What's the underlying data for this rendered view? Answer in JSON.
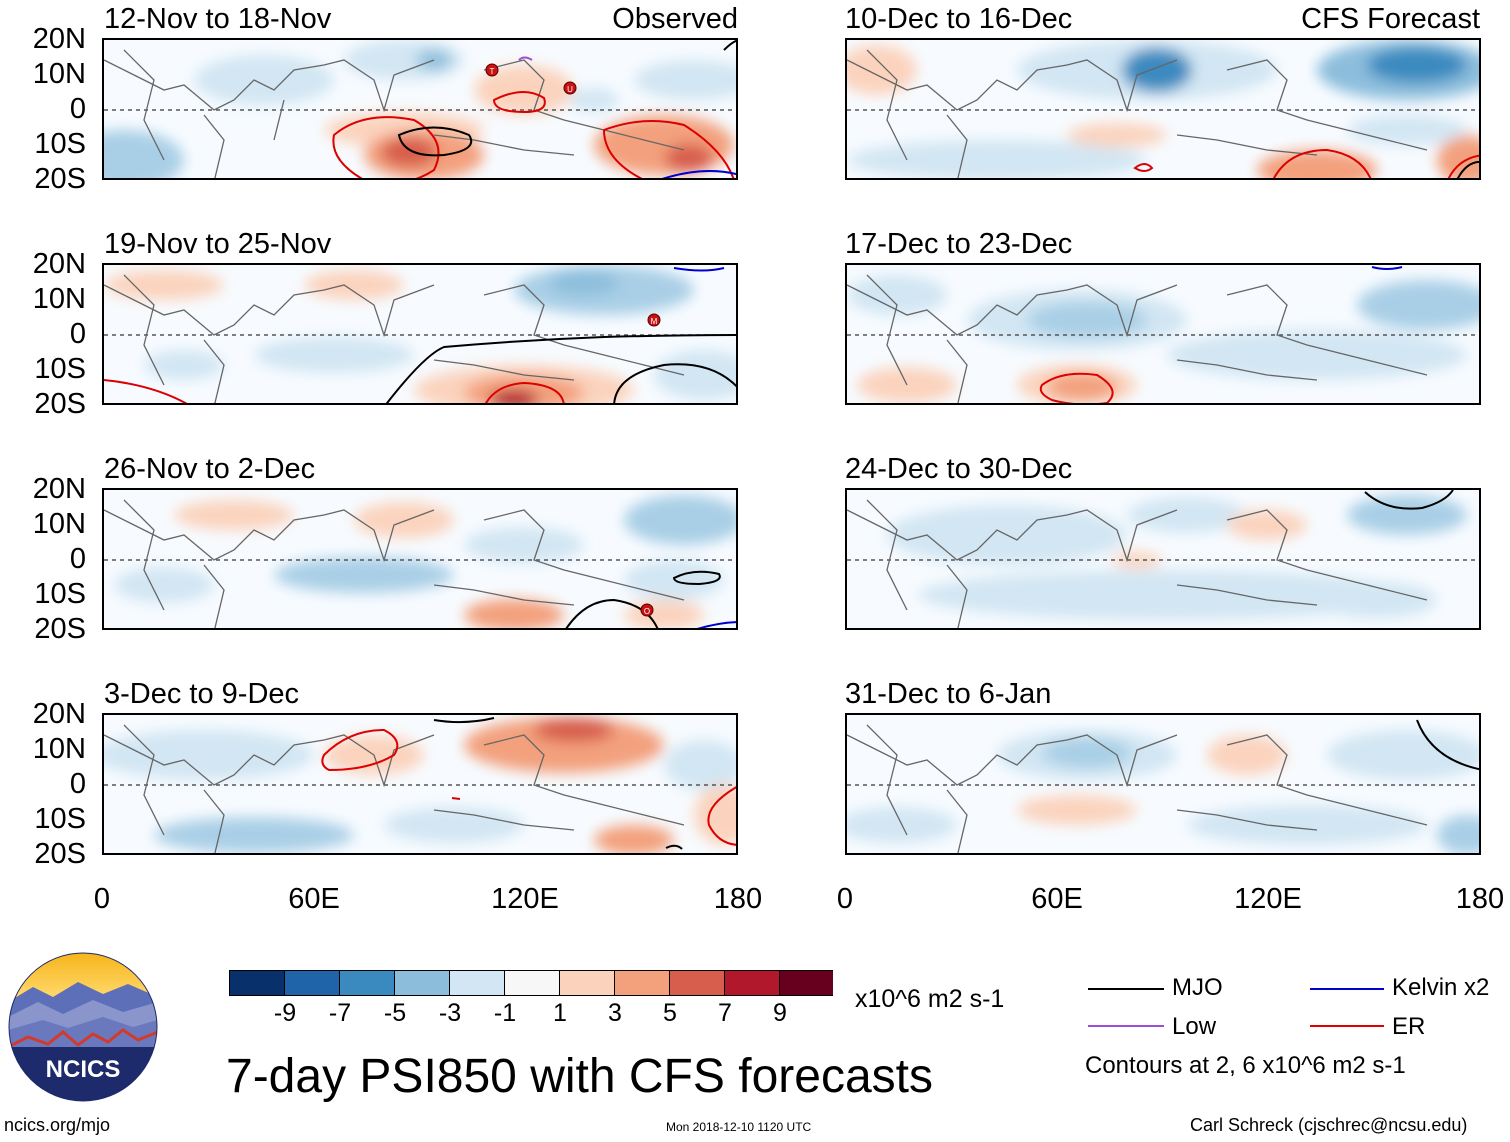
{
  "panels_observed": {
    "header_right": "Observed",
    "titles": [
      "12-Nov to 18-Nov",
      "19-Nov to 25-Nov",
      "26-Nov to 2-Dec",
      "3-Dec to 9-Dec"
    ]
  },
  "panels_forecast": {
    "header_right": "CFS Forecast",
    "titles": [
      "10-Dec to 16-Dec",
      "17-Dec to 23-Dec",
      "24-Dec to 30-Dec",
      "31-Dec to 6-Jan"
    ]
  },
  "axes": {
    "y_ticks": [
      "20N",
      "10N",
      "0",
      "10S",
      "20S"
    ],
    "x_ticks": [
      "0",
      "60E",
      "120E",
      "180"
    ]
  },
  "storm_markers": [
    {
      "panel": "12-Nov to 18-Nov",
      "letter": "T"
    },
    {
      "panel": "12-Nov to 18-Nov",
      "letter": "U"
    },
    {
      "panel": "19-Nov to 25-Nov",
      "letter": "M"
    },
    {
      "panel": "26-Nov to 2-Dec",
      "letter": "O"
    }
  ],
  "colorbar": {
    "labels": [
      "-9",
      "-7",
      "-5",
      "-3",
      "-1",
      "1",
      "3",
      "5",
      "7",
      "9"
    ],
    "colors": [
      "#08306b",
      "#1f63a8",
      "#3a8ac0",
      "#8cbedc",
      "#d2e6f3",
      "#f7f7f7",
      "#fbd3bd",
      "#f3a07d",
      "#d75d4c",
      "#b2182b",
      "#67001f"
    ],
    "units": "x10^6 m2 s-1"
  },
  "legend": {
    "items": [
      {
        "label": "MJO",
        "color": "#000000"
      },
      {
        "label": "Kelvin x2",
        "color": "#0000cc"
      },
      {
        "label": "Low",
        "color": "#9b4fd6"
      },
      {
        "label": "ER",
        "color": "#dd0000"
      }
    ],
    "contours_note": "Contours at 2, 6 x10^6 m2 s-1"
  },
  "logo": {
    "text": "NCICS"
  },
  "main_title": "7-day PSI850 with CFS forecasts",
  "footer": {
    "left": "ncics.org/mjo",
    "center": "Mon 2018-12-10 1120 UTC",
    "right": "Carl Schreck (cjschrec@ncsu.edu)"
  }
}
